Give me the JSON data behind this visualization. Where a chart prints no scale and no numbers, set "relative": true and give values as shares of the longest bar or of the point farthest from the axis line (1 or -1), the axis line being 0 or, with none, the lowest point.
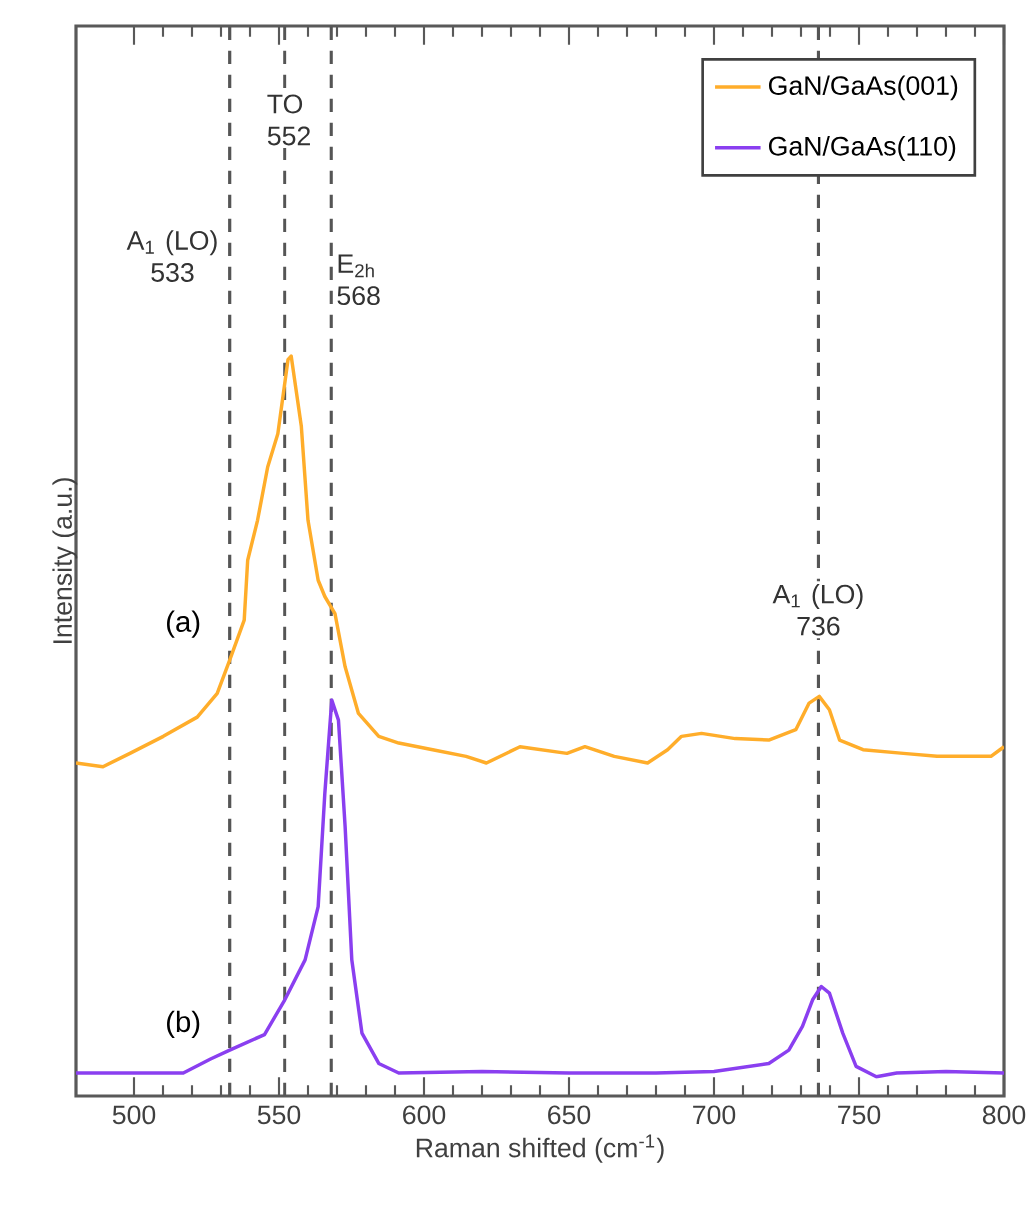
{
  "chart_data": {
    "type": "line",
    "xlabel": "Raman shifted (cm$^{-1}$)",
    "ylabel": "Intensity (a.u.)",
    "relative": true,
    "tick_labels": "x",
    "legend": "top right",
    "xlim": [
      480,
      800
    ],
    "xticks": [
      500,
      550,
      600,
      650,
      700,
      750,
      800
    ],
    "series": [
      {
        "name": "GaN/GaAs(001)",
        "color": "#ffad2a",
        "x": [
          480,
          489.3,
          498.6,
          510.1,
          521.8,
          528.7,
          533,
          538,
          539.2,
          542.6,
          546.1,
          549.6,
          553.1,
          554.2,
          557.7,
          560,
          563.5,
          565.8,
          569.3,
          572.8,
          577.4,
          584.4,
          591.3,
          603,
          614.5,
          621.5,
          633.1,
          649.3,
          655.5,
          665.6,
          677.1,
          684,
          688.8,
          695.7,
          707.3,
          718.9,
          728.2,
          732.8,
          736.3,
          739.8,
          743.3,
          751.4,
          765.3,
          776.9,
          788.5,
          795.5,
          800
        ],
        "values": [
          0.45,
          0.445,
          0.463,
          0.486,
          0.512,
          0.544,
          0.589,
          0.643,
          0.724,
          0.778,
          0.85,
          0.895,
          0.995,
          1.0,
          0.905,
          0.778,
          0.697,
          0.675,
          0.652,
          0.58,
          0.517,
          0.486,
          0.477,
          0.468,
          0.459,
          0.45,
          0.472,
          0.463,
          0.472,
          0.459,
          0.45,
          0.468,
          0.486,
          0.49,
          0.483,
          0.481,
          0.495,
          0.531,
          0.54,
          0.522,
          0.481,
          0.468,
          0.463,
          0.459,
          0.459,
          0.459,
          0.472
        ]
      },
      {
        "name": "GaN/GaAs(110)",
        "color": "#8a3ff0",
        "x": [
          480,
          498.6,
          517,
          526.4,
          533,
          545,
          552,
          559,
          563.5,
          565.8,
          568.2,
          570.5,
          572.8,
          575.1,
          578.6,
          584.4,
          591.3,
          620,
          650,
          680,
          700,
          718.9,
          725.8,
          730.5,
          734,
          737,
          739.8,
          744.4,
          749,
          756,
          763,
          780,
          800
        ],
        "values": [
          0.031,
          0.031,
          0.031,
          0.05,
          0.062,
          0.083,
          0.13,
          0.184,
          0.256,
          0.409,
          0.535,
          0.508,
          0.364,
          0.184,
          0.085,
          0.044,
          0.031,
          0.033,
          0.031,
          0.031,
          0.033,
          0.044,
          0.062,
          0.094,
          0.13,
          0.148,
          0.139,
          0.085,
          0.04,
          0.026,
          0.031,
          0.033,
          0.031
        ]
      }
    ],
    "ref_lines": [
      {
        "axis": "x",
        "value": 533,
        "label": "A$_{1}$ (LO) 533",
        "color": "#555555",
        "line_style": "dashed"
      },
      {
        "axis": "x",
        "value": 552,
        "label": "TO 552",
        "color": "#555555",
        "line_style": "dashed"
      },
      {
        "axis": "x",
        "value": 568,
        "label": "E$_{2h}$ 568",
        "color": "#555555",
        "line_style": "dashed"
      },
      {
        "axis": "x",
        "value": 736,
        "label": "A$_{1}$ (LO) 736",
        "color": "#555555",
        "line_style": "dashed"
      }
    ],
    "annotations": [
      "(a)",
      "(b)"
    ]
  }
}
